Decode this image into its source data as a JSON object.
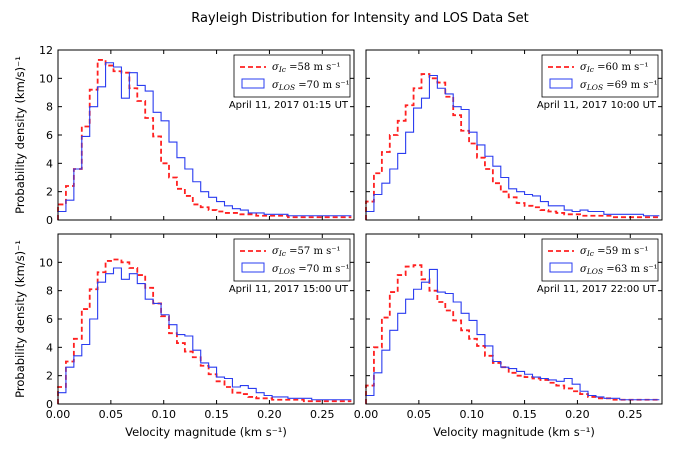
{
  "figure_title": "Rayleigh Distribution for Intensity and LOS Data Set",
  "x_label": "Velocity magnitude (km s⁻¹)",
  "y_label": "Probability density (km/s)⁻¹",
  "colors": {
    "intensity": "#ff2020",
    "los": "#2a3cf0"
  },
  "chart_data": [
    {
      "type": "histogram-step",
      "panel": "top-left",
      "title": "Rayleigh Distribution for Intensity and LOS Data Set",
      "date_label": "April 11, 2017 01:15 UT",
      "xlabel": "",
      "ylabel": "Probability density (km/s)⁻¹",
      "xlim": [
        0,
        0.28
      ],
      "ylim": [
        0,
        12
      ],
      "xticks": [],
      "yticks": [
        "0",
        "2",
        "4",
        "6",
        "8",
        "10",
        "12"
      ],
      "bin_width": 0.0075,
      "legend": [
        {
          "name": "Ic",
          "sigma": "=58 m s⁻¹",
          "style": "dashed"
        },
        {
          "name": "LOS",
          "sigma": "=70 m s⁻¹",
          "style": "solid"
        }
      ],
      "series": [
        {
          "name": "Ic",
          "values": [
            1.1,
            2.4,
            3.6,
            6.6,
            9.2,
            11.3,
            10.9,
            10.5,
            10.4,
            9.3,
            8.4,
            7.2,
            5.9,
            4.0,
            3.0,
            2.2,
            1.7,
            1.1,
            0.9,
            0.7,
            0.6,
            0.5,
            0.5,
            0.4,
            0.4,
            0.3,
            0.3,
            0.3,
            0.3,
            0.2,
            0.2,
            0.2,
            0.2,
            0.2,
            0.2,
            0.2,
            0.2
          ]
        },
        {
          "name": "LOS",
          "values": [
            0.6,
            1.4,
            3.6,
            5.9,
            8.0,
            9.4,
            11.1,
            10.8,
            8.6,
            10.4,
            9.5,
            9.1,
            7.6,
            7.0,
            5.5,
            4.4,
            3.6,
            2.7,
            2.0,
            1.6,
            1.3,
            1.0,
            0.8,
            0.7,
            0.5,
            0.5,
            0.4,
            0.4,
            0.4,
            0.3,
            0.3,
            0.3,
            0.3,
            0.3,
            0.3,
            0.3,
            0.3
          ]
        }
      ]
    },
    {
      "type": "histogram-step",
      "panel": "top-right",
      "date_label": "April 11, 2017 10:00 UT",
      "xlabel": "",
      "ylabel": "",
      "xlim": [
        0,
        0.28
      ],
      "ylim": [
        0,
        12
      ],
      "xticks": [],
      "yticks": [],
      "bin_width": 0.0075,
      "legend": [
        {
          "name": "Ic",
          "sigma": "=60 m s⁻¹",
          "style": "dashed"
        },
        {
          "name": "LOS",
          "sigma": "=69 m s⁻¹",
          "style": "solid"
        }
      ],
      "series": [
        {
          "name": "Ic",
          "values": [
            1.3,
            3.3,
            4.8,
            6.0,
            7.0,
            8.1,
            9.3,
            10.3,
            10.0,
            9.7,
            8.7,
            7.4,
            6.3,
            5.4,
            4.4,
            3.6,
            2.6,
            2.0,
            1.6,
            1.2,
            1.0,
            0.9,
            0.7,
            0.6,
            0.5,
            0.4,
            0.4,
            0.3,
            0.3,
            0.3,
            0.3,
            0.2,
            0.2,
            0.2,
            0.2,
            0.2,
            0.2
          ]
        },
        {
          "name": "LOS",
          "values": [
            0.6,
            1.8,
            2.6,
            3.6,
            4.7,
            6.2,
            7.9,
            8.6,
            10.2,
            9.3,
            8.9,
            8.0,
            7.8,
            6.2,
            5.3,
            4.5,
            3.8,
            3.0,
            2.2,
            2.0,
            1.8,
            1.7,
            1.3,
            1.0,
            1.0,
            0.7,
            0.6,
            0.7,
            0.6,
            0.6,
            0.4,
            0.4,
            0.4,
            0.4,
            0.4,
            0.3,
            0.3
          ]
        }
      ]
    },
    {
      "type": "histogram-step",
      "panel": "bottom-left",
      "date_label": "April 11, 2017 15:00 UT",
      "xlabel": "Velocity magnitude (km s⁻¹)",
      "ylabel": "Probability density (km/s)⁻¹",
      "xlim": [
        0,
        0.28
      ],
      "ylim": [
        0,
        12
      ],
      "xticks": [
        "0.00",
        "0.05",
        "0.10",
        "0.15",
        "0.20",
        "0.25"
      ],
      "yticks": [
        "0",
        "2",
        "4",
        "6",
        "8",
        "10"
      ],
      "bin_width": 0.0075,
      "legend": [
        {
          "name": "Ic",
          "sigma": "=57 m s⁻¹",
          "style": "dashed"
        },
        {
          "name": "LOS",
          "sigma": "=70 m s⁻¹",
          "style": "solid"
        }
      ],
      "series": [
        {
          "name": "Ic",
          "values": [
            1.2,
            3.0,
            4.6,
            6.7,
            8.1,
            9.3,
            10.1,
            10.2,
            10.0,
            9.6,
            9.1,
            8.2,
            7.1,
            6.2,
            5.0,
            4.3,
            3.7,
            3.3,
            2.7,
            2.1,
            1.6,
            1.2,
            0.8,
            0.7,
            0.5,
            0.4,
            0.4,
            0.3,
            0.3,
            0.3,
            0.3,
            0.2,
            0.2,
            0.2,
            0.2,
            0.2,
            0.2
          ]
        },
        {
          "name": "LOS",
          "values": [
            0.8,
            2.6,
            3.4,
            4.2,
            6.0,
            8.6,
            9.2,
            9.6,
            8.8,
            9.2,
            8.5,
            7.4,
            7.1,
            6.3,
            5.6,
            4.9,
            4.8,
            3.8,
            2.9,
            2.6,
            1.9,
            1.8,
            1.2,
            1.3,
            1.1,
            0.8,
            0.6,
            0.5,
            0.5,
            0.4,
            0.4,
            0.4,
            0.3,
            0.3,
            0.3,
            0.3,
            0.3
          ]
        }
      ]
    },
    {
      "type": "histogram-step",
      "panel": "bottom-right",
      "date_label": "April 11, 2017 22:00 UT",
      "xlabel": "Velocity magnitude (km s⁻¹)",
      "ylabel": "",
      "xlim": [
        0,
        0.28
      ],
      "ylim": [
        0,
        12
      ],
      "xticks": [
        "0.00",
        "0.05",
        "0.10",
        "0.15",
        "0.20",
        "0.25"
      ],
      "yticks": [],
      "bin_width": 0.0075,
      "legend": [
        {
          "name": "Ic",
          "sigma": "=59 m s⁻¹",
          "style": "dashed"
        },
        {
          "name": "LOS",
          "sigma": "=63 m s⁻¹",
          "style": "solid"
        }
      ],
      "series": [
        {
          "name": "Ic",
          "values": [
            1.3,
            4.0,
            6.1,
            7.9,
            9.1,
            9.7,
            9.8,
            8.8,
            8.0,
            7.2,
            6.6,
            5.9,
            5.2,
            4.6,
            4.1,
            3.4,
            2.9,
            2.6,
            2.2,
            2.0,
            1.9,
            1.8,
            1.7,
            1.5,
            1.3,
            1.1,
            0.9,
            0.7,
            0.5,
            0.4,
            0.4,
            0.3,
            0.3,
            0.3,
            0.3,
            0.3,
            0.3
          ]
        },
        {
          "name": "LOS",
          "values": [
            0.6,
            2.2,
            3.8,
            5.2,
            6.4,
            7.4,
            8.1,
            8.6,
            9.5,
            7.9,
            7.8,
            7.2,
            6.4,
            5.9,
            4.9,
            4.1,
            3.0,
            2.6,
            2.5,
            2.3,
            2.1,
            1.9,
            1.8,
            1.7,
            1.6,
            1.8,
            1.4,
            0.9,
            0.6,
            0.5,
            0.4,
            0.4,
            0.3,
            0.3,
            0.3,
            0.3,
            0.3
          ]
        }
      ]
    }
  ]
}
